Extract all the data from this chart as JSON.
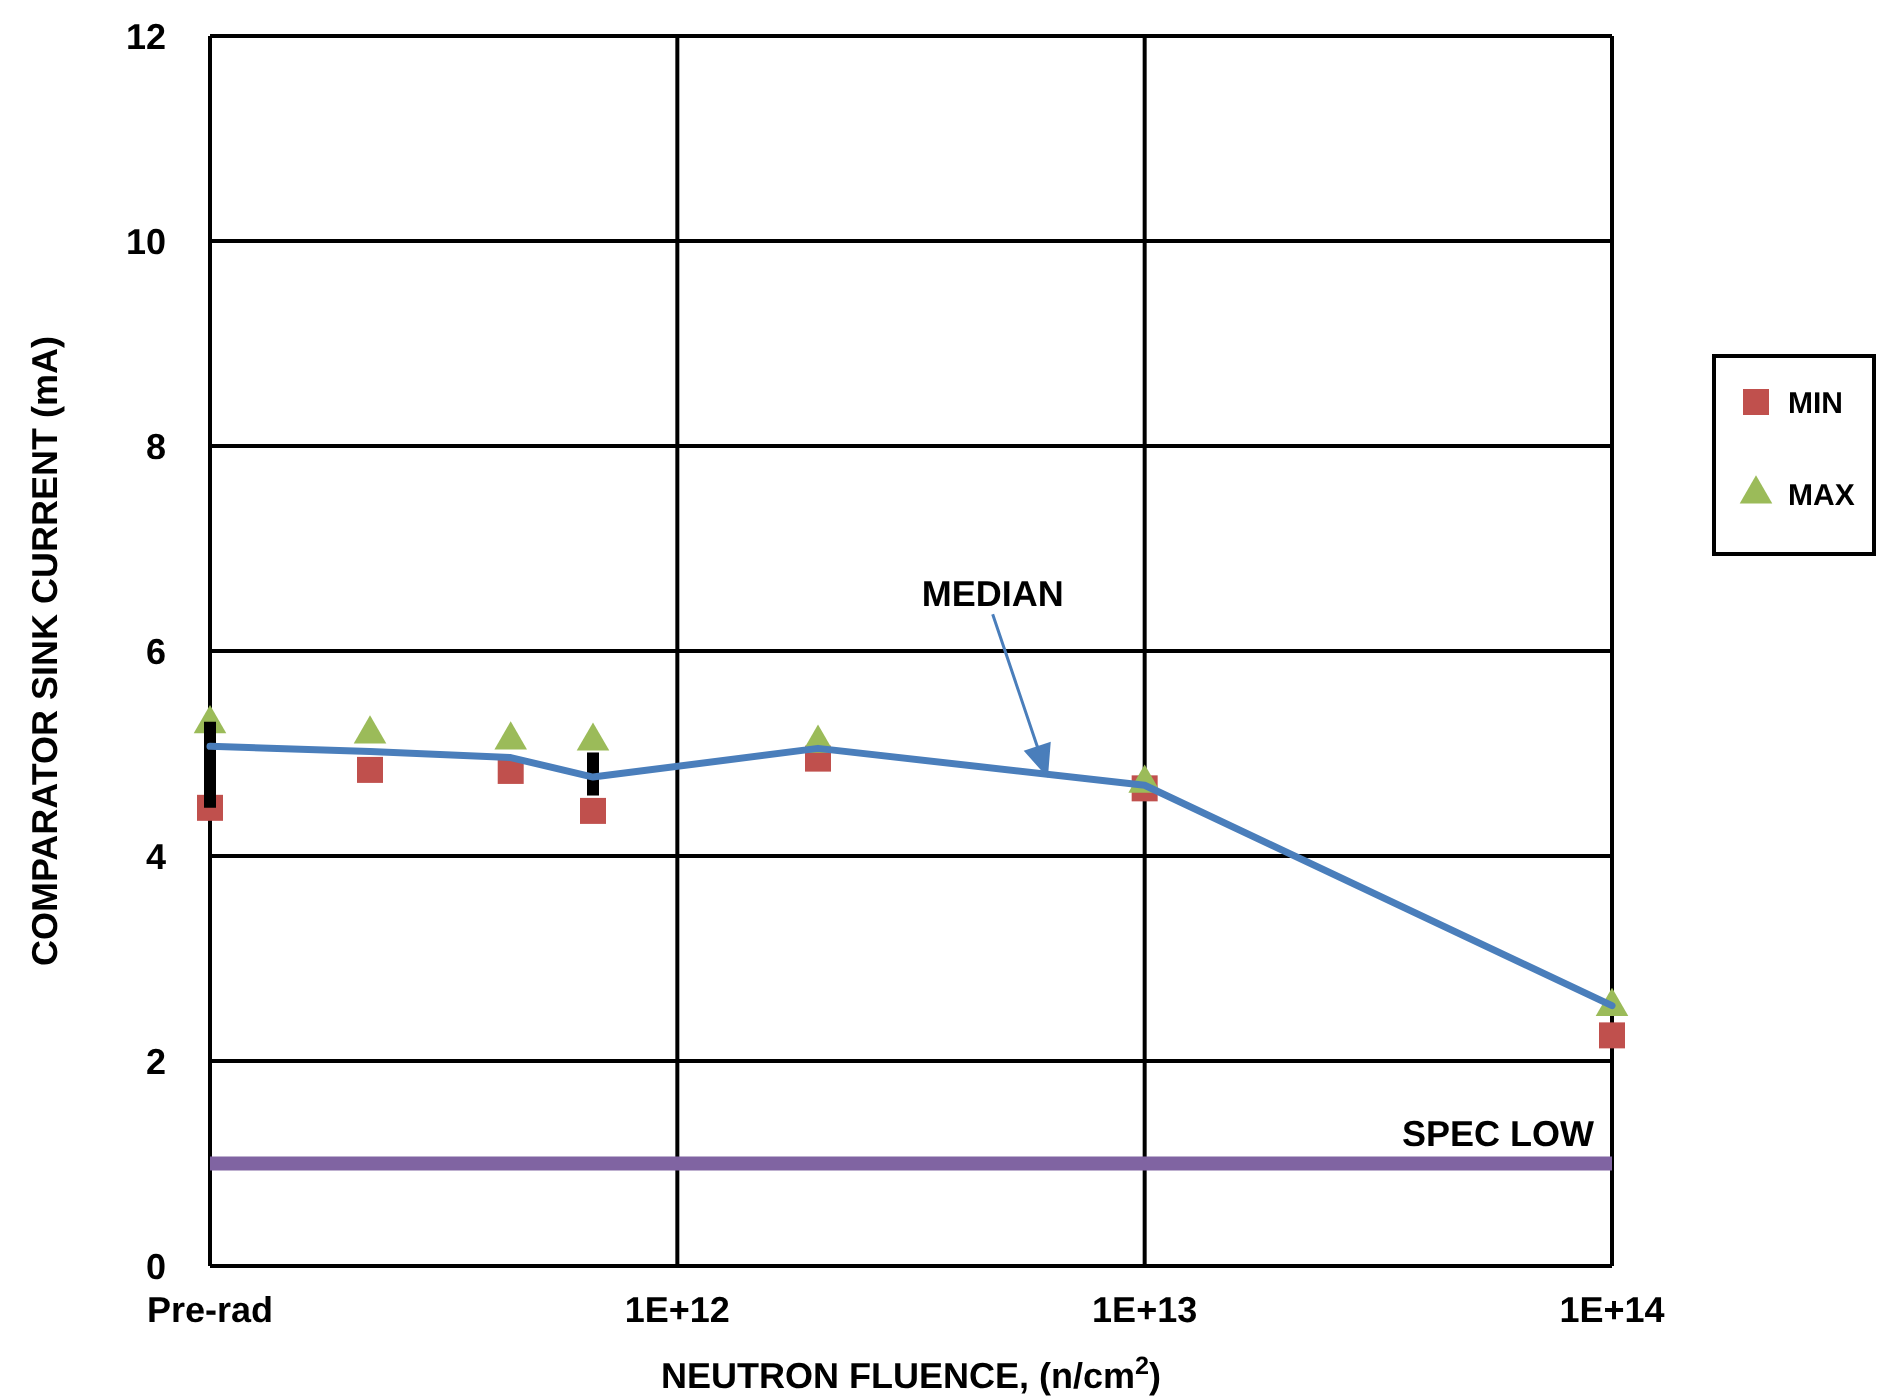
{
  "chart_data": {
    "type": "line",
    "xlabel": "NEUTRON FLUENCE, (n/cm$^{2}$)",
    "ylabel": "COMPARATOR SINK CURRENT (mA)",
    "log": "x",
    "xlim": [
      100000000000.0,
      100000000000000.0
    ],
    "xticks": [
      {
        "value": 100000000000.0,
        "label": "Pre-rad"
      },
      {
        "value": 1000000000000.0,
        "label": "1E+12"
      },
      {
        "value": 10000000000000.0,
        "label": "1E+13"
      },
      {
        "value": 100000000000000.0,
        "label": "1E+14"
      }
    ],
    "ylim": [
      0,
      12
    ],
    "yticks": [
      0,
      2,
      4,
      6,
      8,
      10,
      12
    ],
    "grid": true,
    "legend": "right",
    "x": [
      100000000000.0,
      220000000000.0,
      440000000000.0,
      660000000000.0,
      2000000000000.0,
      10000000000000.0,
      100000000000000.0
    ],
    "series": [
      {
        "name": "MIN",
        "type": "scatter",
        "marker": "square",
        "color": "#c0504d",
        "values": [
          4.47,
          4.84,
          4.83,
          4.44,
          4.95,
          4.66,
          2.25
        ]
      },
      {
        "name": "MAX",
        "type": "scatter",
        "marker": "triangle",
        "color": "#9bbb59",
        "values": [
          5.29,
          5.19,
          5.13,
          5.12,
          5.1,
          4.71,
          2.53
        ]
      },
      {
        "color": "#4a7ebb",
        "marker": "none",
        "values": [
          5.07,
          5.02,
          4.96,
          4.77,
          5.05,
          4.69,
          2.54
        ],
        "errors": [
          [
            4.47,
            5.31
          ],
          null,
          null,
          [
            4.59,
            5.01
          ],
          null,
          null,
          null
        ]
      }
    ],
    "ref_lines": [
      {
        "axis": "y",
        "value": 1,
        "label": "SPEC LOW",
        "color": "#8064a2"
      }
    ],
    "annotations": [
      "MEDIAN"
    ]
  }
}
